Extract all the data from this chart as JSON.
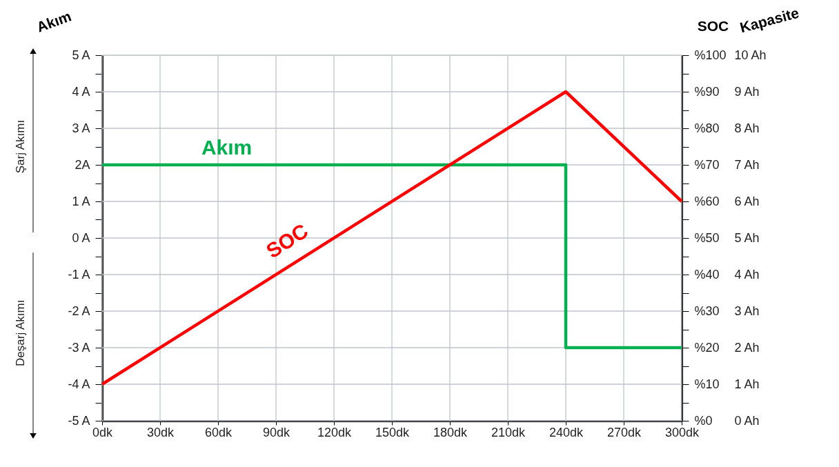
{
  "chart_data": {
    "type": "line",
    "ylabel": "Akım",
    "y2label": "SOC",
    "y3label": "Kapasite",
    "xlim": [
      0,
      300
    ],
    "xticks": [
      {
        "value": 0,
        "label": "0dk"
      },
      {
        "value": 30,
        "label": "30dk"
      },
      {
        "value": 60,
        "label": "60dk"
      },
      {
        "value": 90,
        "label": "90dk"
      },
      {
        "value": 120,
        "label": "120dk"
      },
      {
        "value": 150,
        "label": "150dk"
      },
      {
        "value": 180,
        "label": "180dk"
      },
      {
        "value": 210,
        "label": "210dk"
      },
      {
        "value": 240,
        "label": "240dk"
      },
      {
        "value": 270,
        "label": "270dk"
      },
      {
        "value": 300,
        "label": "300dk"
      }
    ],
    "ylim": [
      -5,
      5
    ],
    "yticks": [
      {
        "value": -5,
        "label": "-5 A"
      },
      {
        "value": -4.5,
        "label": null
      },
      {
        "value": -4,
        "label": "-4 A"
      },
      {
        "value": -3.5,
        "label": null
      },
      {
        "value": -3,
        "label": "-3 A"
      },
      {
        "value": -2.5,
        "label": null
      },
      {
        "value": -2,
        "label": "-2 A"
      },
      {
        "value": -1.5,
        "label": null
      },
      {
        "value": -1,
        "label": "-1 A"
      },
      {
        "value": -0.5,
        "label": null
      },
      {
        "value": 0,
        "label": "0 A"
      },
      {
        "value": 0.5,
        "label": null
      },
      {
        "value": 1,
        "label": "1 A"
      },
      {
        "value": 1.5,
        "label": null
      },
      {
        "value": 2,
        "label": "2A"
      },
      {
        "value": 2.5,
        "label": null
      },
      {
        "value": 3,
        "label": "3 A"
      },
      {
        "value": 3.5,
        "label": null
      },
      {
        "value": 4,
        "label": "4 A"
      },
      {
        "value": 4.5,
        "label": null
      },
      {
        "value": 5,
        "label": "5 A"
      }
    ],
    "y2lim": [
      0,
      100
    ],
    "y2ticks": [
      {
        "value": 0,
        "label": "%0"
      },
      {
        "value": 5,
        "label": null
      },
      {
        "value": 10,
        "label": "%10"
      },
      {
        "value": 15,
        "label": null
      },
      {
        "value": 20,
        "label": "%20"
      },
      {
        "value": 25,
        "label": null
      },
      {
        "value": 30,
        "label": "%30"
      },
      {
        "value": 35,
        "label": null
      },
      {
        "value": 40,
        "label": "%40"
      },
      {
        "value": 45,
        "label": null
      },
      {
        "value": 50,
        "label": "%50"
      },
      {
        "value": 55,
        "label": null
      },
      {
        "value": 60,
        "label": "%60"
      },
      {
        "value": 65,
        "label": null
      },
      {
        "value": 70,
        "label": "%70"
      },
      {
        "value": 75,
        "label": null
      },
      {
        "value": 80,
        "label": "%80"
      },
      {
        "value": 85,
        "label": null
      },
      {
        "value": 90,
        "label": "%90"
      },
      {
        "value": 95,
        "label": null
      },
      {
        "value": 100,
        "label": "%100"
      }
    ],
    "y3lim": [
      0,
      10
    ],
    "y3ticks": [
      {
        "value": 0,
        "label": "0 Ah"
      },
      {
        "value": 1,
        "label": "1 Ah"
      },
      {
        "value": 2,
        "label": "2 Ah"
      },
      {
        "value": 3,
        "label": "3 Ah"
      },
      {
        "value": 4,
        "label": "4 Ah"
      },
      {
        "value": 5,
        "label": "5 Ah"
      },
      {
        "value": 6,
        "label": "6 Ah"
      },
      {
        "value": 7,
        "label": "7 Ah"
      },
      {
        "value": 8,
        "label": "8 Ah"
      },
      {
        "value": 9,
        "label": "9 Ah"
      },
      {
        "value": 10,
        "label": "10 Ah"
      }
    ],
    "grid": true,
    "marker": "none",
    "line_style": "solid",
    "series": [
      {
        "name": "Akım",
        "color": "#00b050",
        "x": [
          0,
          240,
          240,
          300
        ],
        "values": [
          2,
          2,
          -3,
          -3
        ]
      },
      {
        "name": "SOC",
        "color": "#ff0000",
        "axis": "y2",
        "x": [
          0,
          240,
          300
        ],
        "values": [
          10,
          90,
          60
        ]
      }
    ],
    "annotations": [
      "Şarj Akımı",
      "Deşarj Akımı"
    ]
  }
}
